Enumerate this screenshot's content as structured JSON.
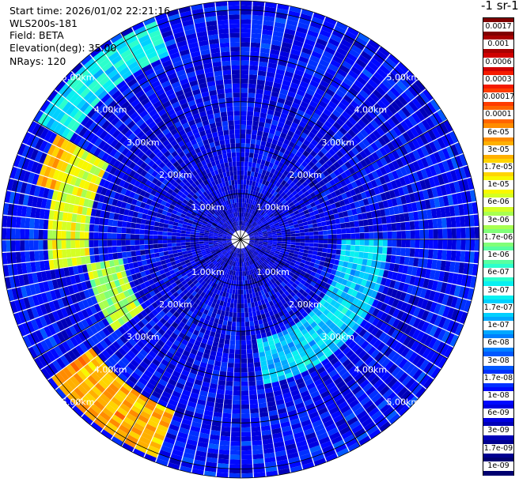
{
  "header": {
    "start_time": "Start time: 2026/01/02 22:21:16",
    "instrument": "WLS200s-181",
    "field": "Field: BETA",
    "elevation": "Elevation(deg): 35.00",
    "nrays": "NRays: 120"
  },
  "colorbar": {
    "title": "-1 sr-1",
    "labels": [
      "0.0017",
      "0.001",
      "0.0006",
      "0.0003",
      "0.00017",
      "0.0001",
      "6e-05",
      "3e-05",
      "1.7e-05",
      "1e-05",
      "6e-06",
      "3e-06",
      "1.7e-06",
      "1e-06",
      "6e-07",
      "3e-07",
      "1.7e-07",
      "1e-07",
      "6e-08",
      "3e-08",
      "1.7e-08",
      "1e-08",
      "6e-09",
      "3e-09",
      "1.7e-09",
      "1e-09"
    ],
    "colors": [
      "#800000",
      "#a80000",
      "#d00000",
      "#f41a00",
      "#ff3c00",
      "#ff6400",
      "#ff8c00",
      "#ffb000",
      "#ffd400",
      "#f8f800",
      "#d4ff24",
      "#a8ff50",
      "#80ff78",
      "#58ffa0",
      "#2cffcc",
      "#08f0f0",
      "#00d0ff",
      "#00a8ff",
      "#0080ff",
      "#0058ff",
      "#0030ff",
      "#0008ff",
      "#0000e0",
      "#0000b8",
      "#000090",
      "#000070"
    ]
  },
  "chart_data": {
    "type": "heatmap",
    "projection": "polar PPI",
    "title": "",
    "nrays": 120,
    "range_unit": "km",
    "range_rings_km": [
      1,
      2,
      3,
      4,
      5
    ],
    "range_ring_labels": [
      "1.00km",
      "2.00km",
      "3.00km",
      "4.00km",
      "5.00km"
    ],
    "max_range_km": 5.2,
    "azimuth_grid_deg": [
      0,
      30,
      60,
      90,
      120,
      150,
      180,
      210,
      240,
      270,
      300,
      330
    ],
    "value_scale": "log",
    "value_range": [
      1e-09,
      0.0017
    ],
    "enhanced_regions": [
      {
        "azimuth_deg": [
          200,
          235
        ],
        "range_km": [
          4.0,
          5.1
        ],
        "value": 3e-05
      },
      {
        "azimuth_deg": [
          235,
          260
        ],
        "range_km": [
          2.6,
          3.4
        ],
        "value": 3e-06
      },
      {
        "azimuth_deg": [
          260,
          300
        ],
        "range_km": [
          3.3,
          4.2
        ],
        "value": 6e-06
      },
      {
        "azimuth_deg": [
          285,
          300
        ],
        "range_km": [
          4.1,
          4.6
        ],
        "value": 3e-05
      },
      {
        "azimuth_deg": [
          300,
          340
        ],
        "range_km": [
          4.3,
          5.1
        ],
        "value": 3e-07
      },
      {
        "azimuth_deg": [
          90,
          170
        ],
        "range_km": [
          2.2,
          3.2
        ],
        "value": 1.7e-07
      }
    ]
  }
}
